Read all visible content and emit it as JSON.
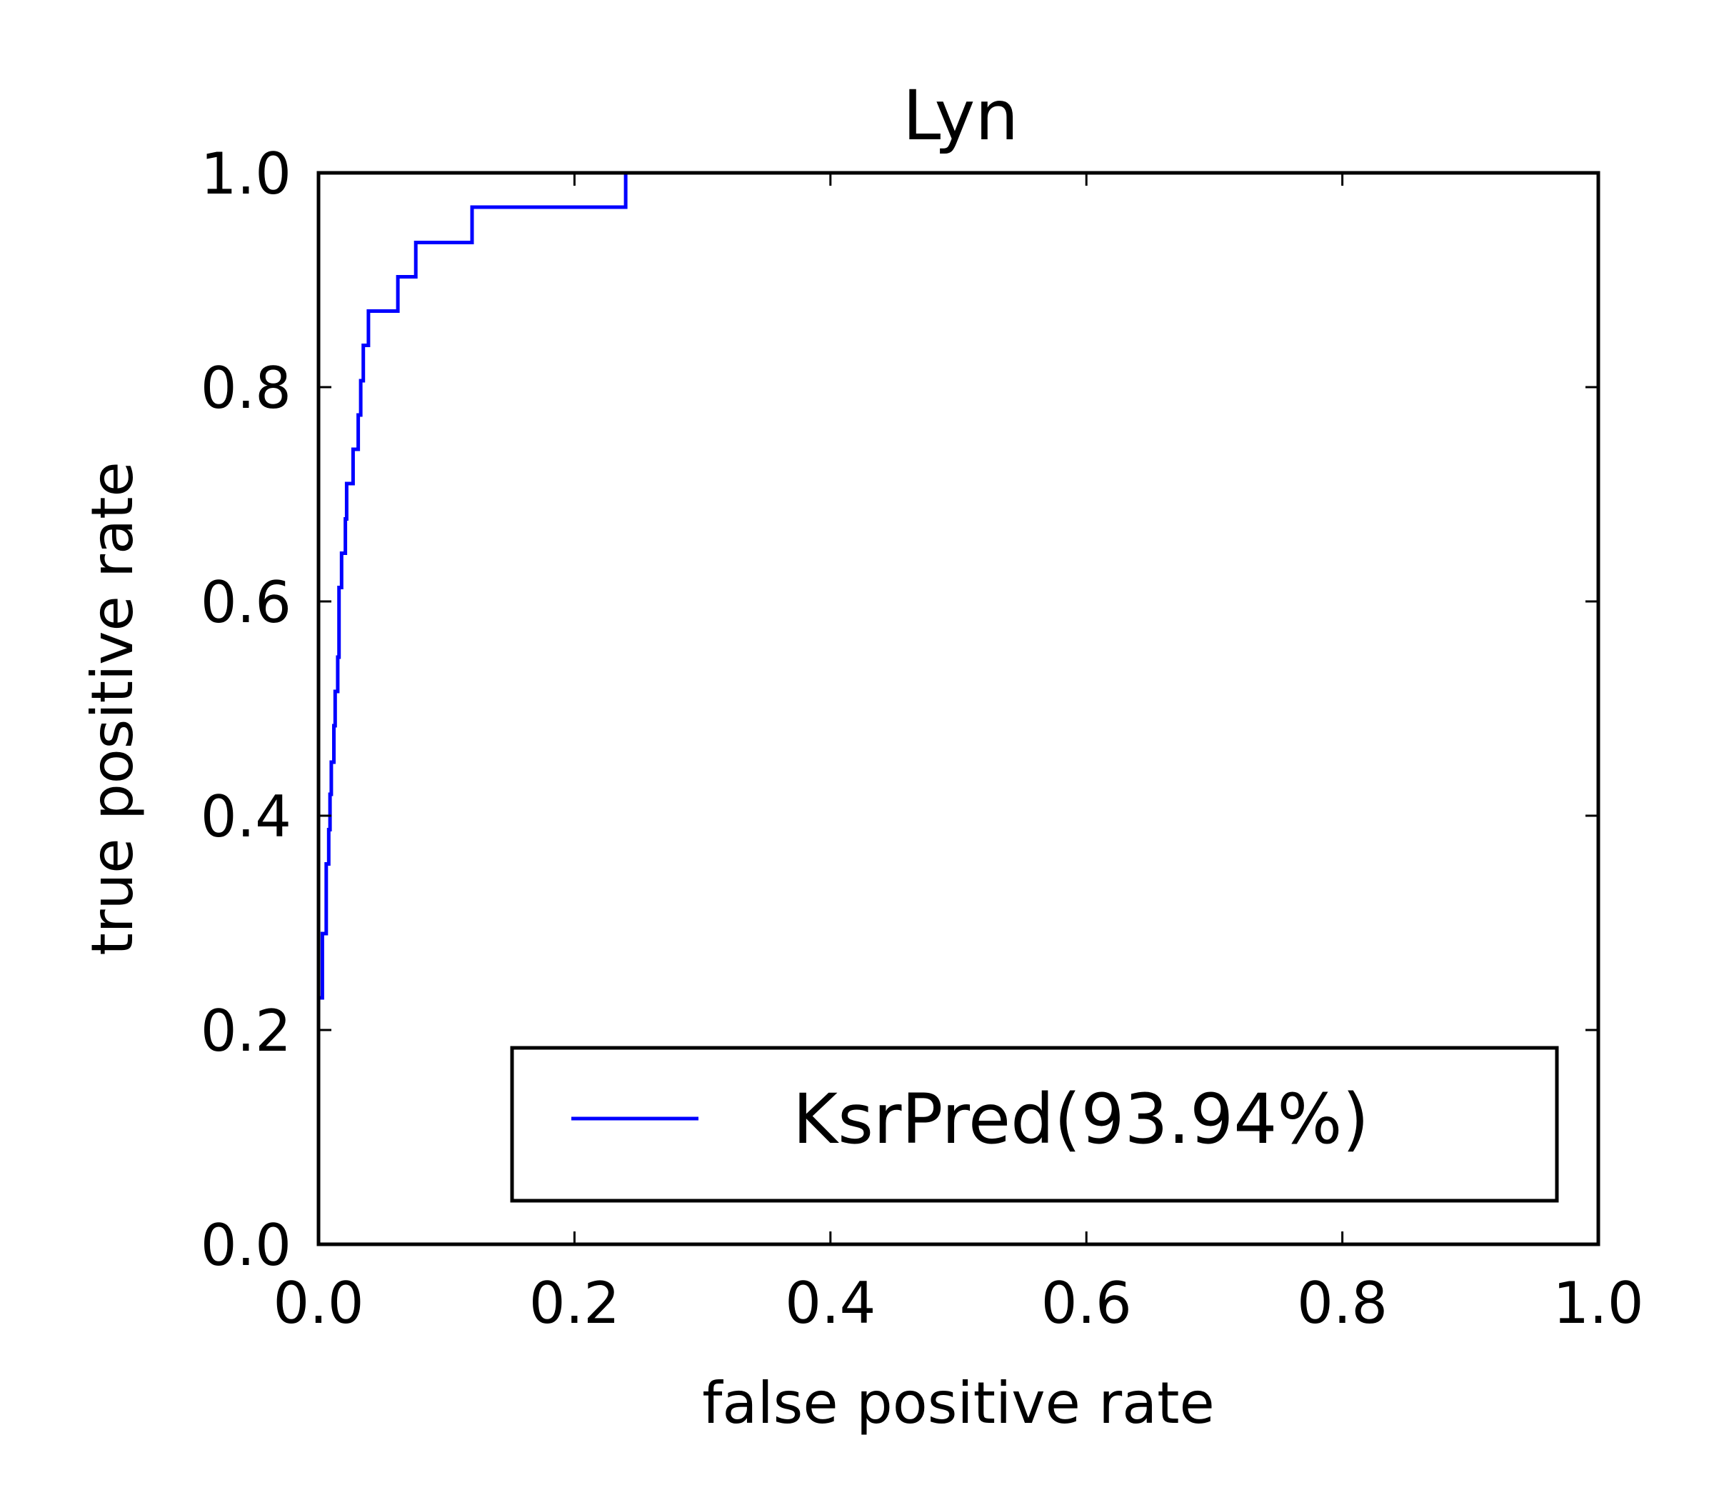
{
  "chart_data": {
    "type": "line",
    "title": "Lyn",
    "xlabel": "false positive rate",
    "ylabel": "true positive rate",
    "xlim": [
      0.0,
      1.0
    ],
    "ylim": [
      0.0,
      1.0
    ],
    "x_ticks": [
      "0.0",
      "0.2",
      "0.4",
      "0.6",
      "0.8",
      "1.0"
    ],
    "y_ticks": [
      "0.0",
      "0.2",
      "0.4",
      "0.6",
      "0.8",
      "1.0"
    ],
    "grid": false,
    "legend_position": "lower-right",
    "series": [
      {
        "name": "KsrPred(93.94%)",
        "color": "#0000ff",
        "drawstyle": "steps",
        "x": [
          0.0,
          0.0,
          0.003,
          0.003,
          0.006,
          0.006,
          0.008,
          0.008,
          0.009,
          0.009,
          0.01,
          0.01,
          0.012,
          0.012,
          0.013,
          0.013,
          0.015,
          0.015,
          0.016,
          0.016,
          0.018,
          0.018,
          0.021,
          0.021,
          0.022,
          0.022,
          0.027,
          0.027,
          0.031,
          0.031,
          0.033,
          0.033,
          0.035,
          0.035,
          0.039,
          0.039,
          0.062,
          0.062,
          0.076,
          0.076,
          0.12,
          0.12,
          0.24,
          0.24,
          0.264,
          0.264,
          0.39,
          0.39,
          0.42,
          0.42
        ],
        "y": [
          0.1,
          0.23,
          0.23,
          0.29,
          0.29,
          0.355,
          0.355,
          0.387,
          0.387,
          0.42,
          0.42,
          0.45,
          0.45,
          0.484,
          0.484,
          0.516,
          0.516,
          0.548,
          0.548,
          0.613,
          0.613,
          0.645,
          0.645,
          0.677,
          0.677,
          0.71,
          0.71,
          0.742,
          0.742,
          0.774,
          0.774,
          0.806,
          0.806,
          0.839,
          0.839,
          0.871,
          0.871,
          0.903,
          0.903,
          0.935,
          0.935,
          0.968,
          0.968,
          1.0,
          1.0,
          1.0,
          1.0,
          1.0,
          1.0,
          1.0
        ]
      }
    ]
  }
}
